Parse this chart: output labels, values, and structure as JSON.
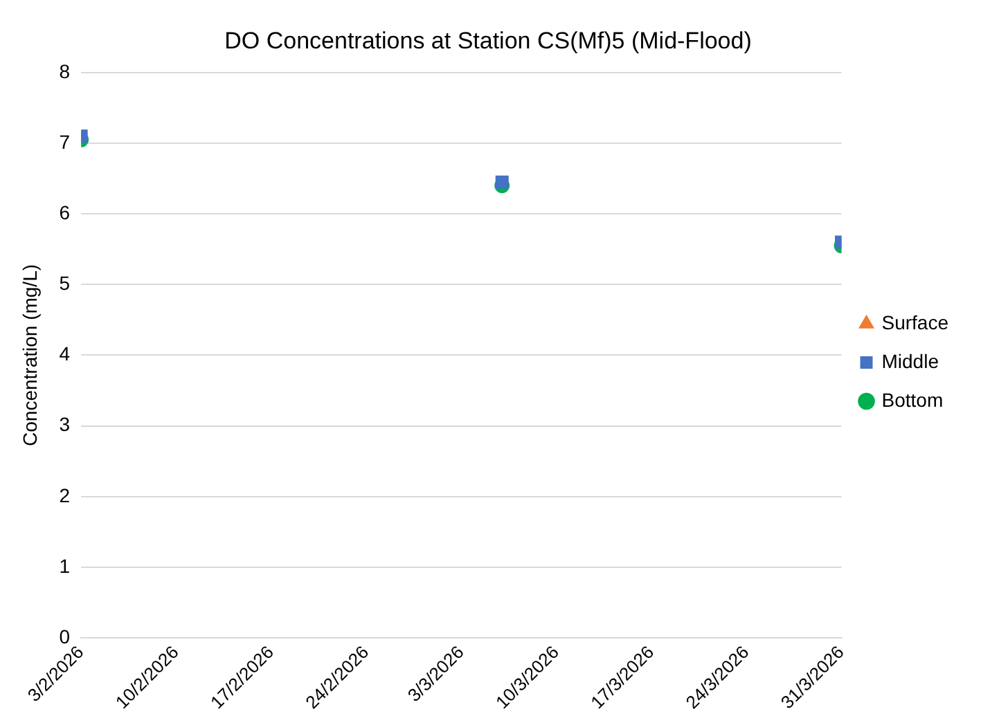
{
  "chart_data": {
    "type": "scatter",
    "title": "DO Concentrations at Station CS(Mf)5 (Mid-Flood)",
    "ylabel": "Concentration (mg/L)",
    "x": [
      "2026-02-03",
      "2026-03-06",
      "2026-03-31"
    ],
    "xlim": [
      "2026-02-03",
      "2026-03-31"
    ],
    "xticks": [
      {
        "value": "2026-02-03",
        "label": "3/2/2026"
      },
      {
        "value": "2026-02-10",
        "label": "10/2/2026"
      },
      {
        "value": "2026-02-17",
        "label": "17/2/2026"
      },
      {
        "value": "2026-02-24",
        "label": "24/2/2026"
      },
      {
        "value": "2026-03-03",
        "label": "3/3/2026"
      },
      {
        "value": "2026-03-10",
        "label": "10/3/2026"
      },
      {
        "value": "2026-03-17",
        "label": "17/3/2026"
      },
      {
        "value": "2026-03-24",
        "label": "24/3/2026"
      },
      {
        "value": "2026-03-31",
        "label": "31/3/2026"
      }
    ],
    "ylim": [
      0,
      8
    ],
    "yticks": [
      0,
      1,
      2,
      3,
      4,
      5,
      6,
      7,
      8
    ],
    "grid": "y",
    "legend": "right",
    "series": [
      {
        "name": "Surface",
        "color": "#ed7d31",
        "marker": "triangle",
        "values": [
          null,
          null,
          null
        ]
      },
      {
        "name": "Middle",
        "color": "#4472c4",
        "marker": "square",
        "values": [
          7.1,
          6.45,
          5.6
        ]
      },
      {
        "name": "Bottom",
        "color": "#00b050",
        "marker": "circle",
        "values": [
          7.05,
          6.4,
          5.55
        ]
      }
    ]
  }
}
